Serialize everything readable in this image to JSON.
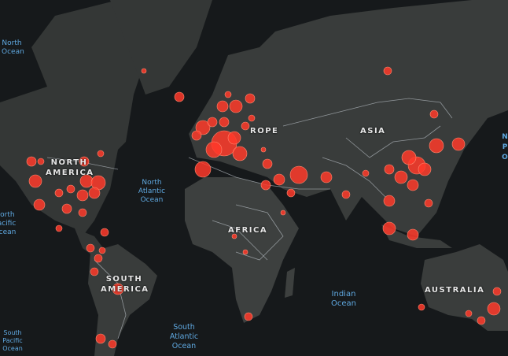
{
  "continents": {
    "north_america": [
      "NORTH",
      "AMERICA"
    ],
    "europe": "ROPE",
    "asia": "ASIA",
    "africa": "AFRICA",
    "south_america": [
      "SOUTH",
      "AMERICA"
    ],
    "australia": "AUSTRALIA"
  },
  "oceans": {
    "north_pacific_top": [
      "North",
      "Ocean"
    ],
    "north_atlantic": [
      "North",
      "Atlantic",
      "Ocean"
    ],
    "north_pacific_left": [
      "North",
      "Pacific",
      "Ocean"
    ],
    "indian": [
      "Indian",
      "Ocean"
    ],
    "south_atlantic": [
      "South",
      "Atlantic",
      "Ocean"
    ],
    "south_pacific": [
      "South",
      "Pacific",
      "Ocean"
    ],
    "north_pacific_right": [
      "N",
      "P",
      "O"
    ]
  },
  "colors": {
    "background": "#16191b",
    "land": "#3a3d3c",
    "border": "#b9bec4",
    "bubble": "#ff3a2a",
    "ocean_label": "#5fa8e0"
  }
}
